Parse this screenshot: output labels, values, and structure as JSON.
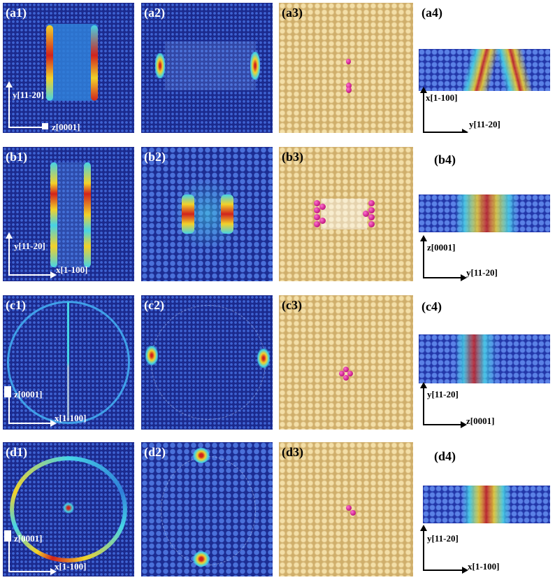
{
  "rows": [
    {
      "id": "a",
      "labels": [
        "(a1)",
        "(a2)",
        "(a3)",
        "(a4)"
      ],
      "p1_axes": {
        "vertical": "y[11-20]",
        "horizontal": "z[0001]"
      },
      "p4_axes": {
        "vertical": "x[1-100]",
        "horizontal": "y[11-20]"
      }
    },
    {
      "id": "b",
      "labels": [
        "(b1)",
        "(b2)",
        "(b3)",
        "(b4)"
      ],
      "p1_axes": {
        "vertical": "y[11-20]",
        "horizontal": "x[1-100]"
      },
      "p4_axes": {
        "vertical": "z[0001]",
        "horizontal": "y[11-20]"
      }
    },
    {
      "id": "c",
      "labels": [
        "(c1)",
        "(c2)",
        "(c3)",
        "(c4)"
      ],
      "p1_axes": {
        "vertical": "z[0001]",
        "horizontal": "x[1-100]"
      },
      "p4_axes": {
        "vertical": "y[11-20]",
        "horizontal": "z[0001]"
      }
    },
    {
      "id": "d",
      "labels": [
        "(d1)",
        "(d2)",
        "(d3)",
        "(d4)"
      ],
      "p1_axes": {
        "vertical": "z[0001]",
        "horizontal": "x[1-100]"
      },
      "p4_axes": {
        "vertical": "y[11-20]",
        "horizontal": "x[1-100]"
      }
    }
  ],
  "colors": {
    "matrix_blue": "#1b2a8e",
    "atom_blue": "#3e63d2",
    "defect_red": "#d1231c",
    "defect_yellow": "#f2d22a",
    "defect_cyan": "#46d3e6",
    "gold_atom": "#f3dfa8",
    "pink_atom": "#d6208f"
  }
}
